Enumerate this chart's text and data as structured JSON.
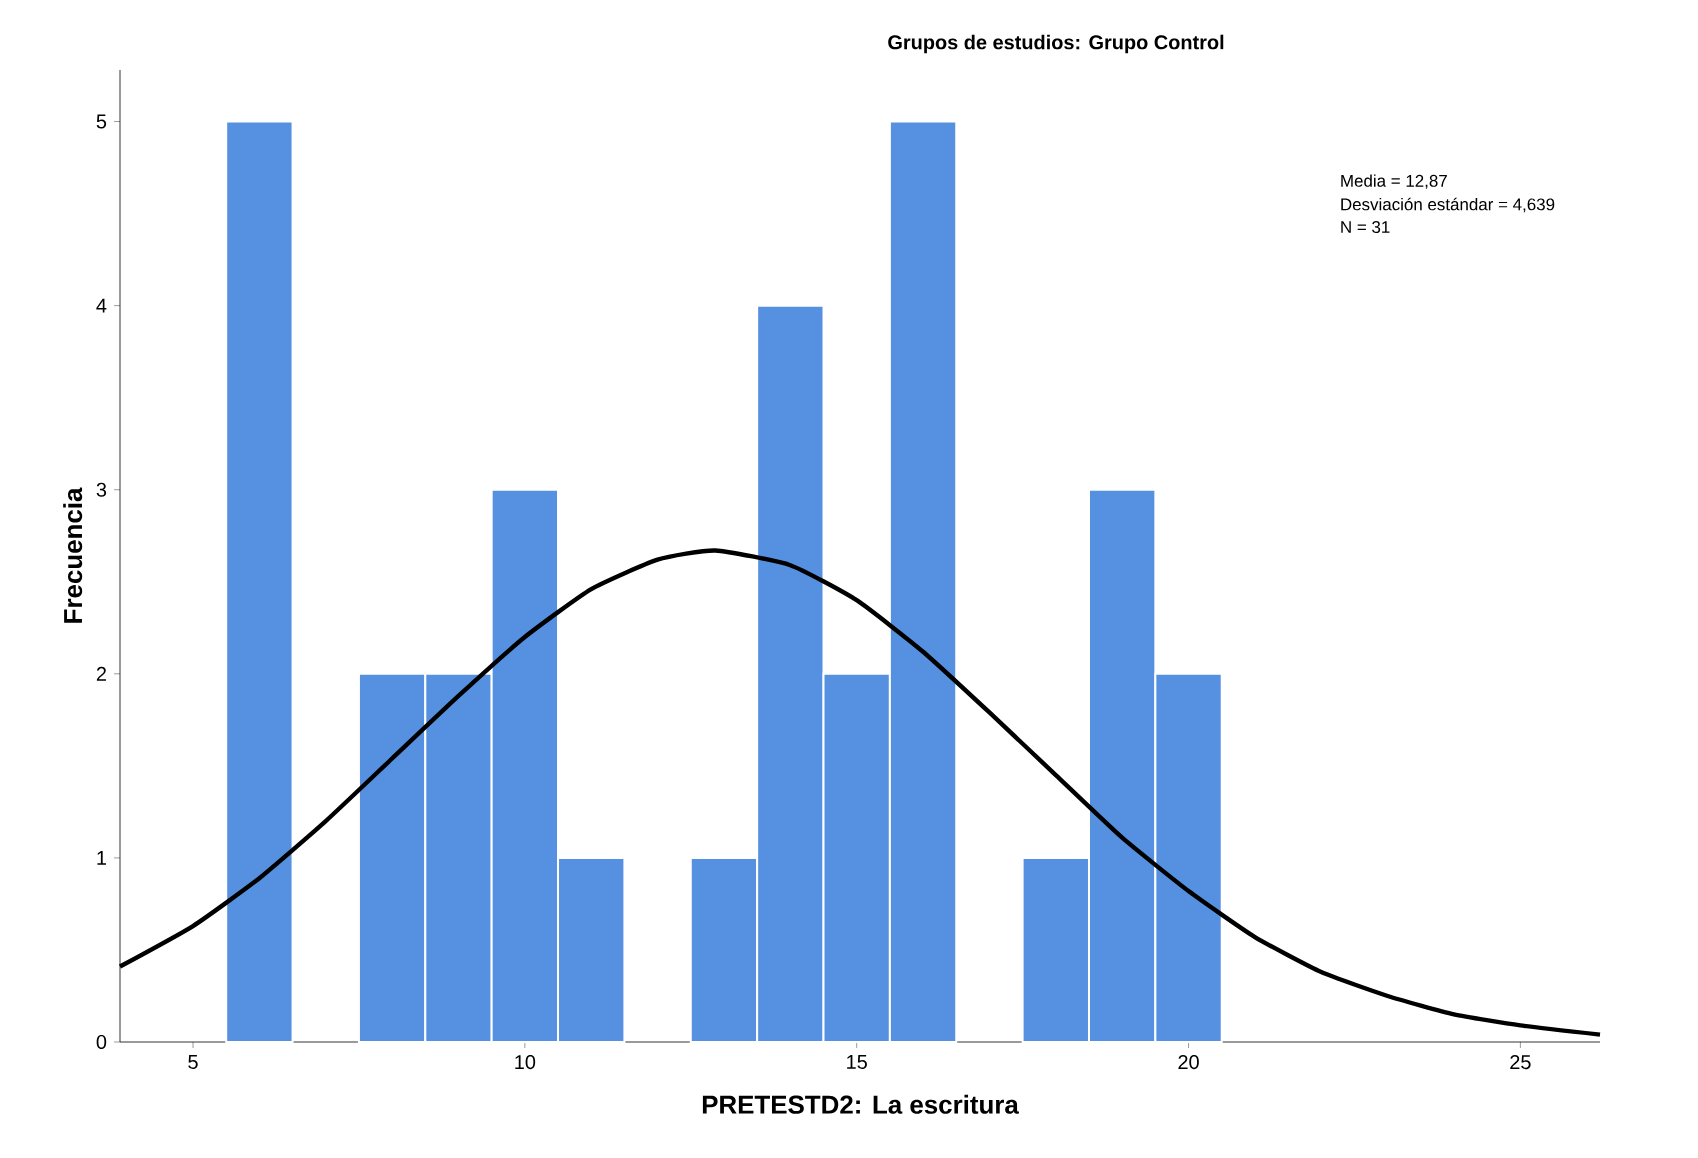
{
  "chart_data": {
    "type": "histogram",
    "title": "Grupos de estudios: Grupo Control",
    "xlabel": "PRETESTD2: La escritura",
    "ylabel": "Frecuencia",
    "bins": [
      5.5,
      6.5,
      7.5,
      8.5,
      9.5,
      10.5,
      11.5,
      12.5,
      13.5,
      14.5,
      15.5,
      16.5,
      17.5,
      18.5,
      19.5,
      20.5
    ],
    "values": [
      5,
      0,
      2,
      2,
      3,
      1,
      0,
      1,
      4,
      2,
      5,
      0,
      1,
      3,
      2
    ],
    "color": "#5591e0",
    "series": [
      {
        "type": "line",
        "color": "#000000",
        "x": [
          3.9,
          5,
          6,
          7,
          8,
          9,
          10,
          11,
          12,
          12.87,
          14,
          15,
          16,
          17,
          18,
          19,
          20,
          21,
          22,
          23,
          24,
          25,
          26.2
        ],
        "values": [
          0.41,
          0.63,
          0.89,
          1.2,
          1.54,
          1.88,
          2.2,
          2.46,
          2.62,
          2.67,
          2.59,
          2.4,
          2.12,
          1.79,
          1.45,
          1.11,
          0.82,
          0.57,
          0.38,
          0.25,
          0.15,
          0.09,
          0.04
        ]
      }
    ],
    "xlim": [
      3.9,
      26.2
    ],
    "ylim": [
      0,
      5.28
    ],
    "xticks": [
      5,
      10,
      15,
      20,
      25
    ],
    "yticks": [
      0,
      1,
      2,
      3,
      4,
      5
    ],
    "grid": false,
    "annotations": [
      "Media = 12,87",
      "Desviación estándar = 4,639",
      "N = 31"
    ]
  }
}
